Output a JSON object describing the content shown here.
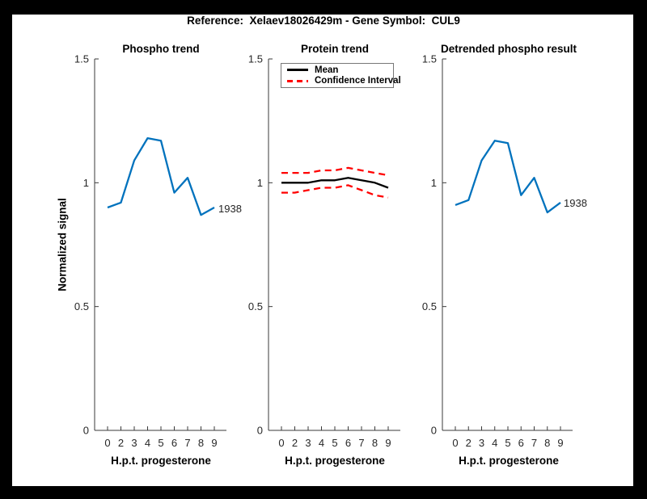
{
  "window": {
    "background": "#000000",
    "canvas_background": "#ffffff"
  },
  "figure_title": "Reference:  Xelaev18026429m - Gene Symbol:  CUL9",
  "axis_style": {
    "line_color": "#3a3a3a",
    "tick_label_color": "#262626"
  },
  "chart_data": [
    {
      "type": "line",
      "title": "Phospho trend",
      "xlabel": "H.p.t. progesterone",
      "ylabel": "Normalized signal",
      "ylim": [
        0,
        1.5
      ],
      "ytick_labels": [
        "0",
        "0.5",
        "1",
        "1.5"
      ],
      "categories": [
        "0",
        "2",
        "3",
        "4",
        "5",
        "6",
        "7",
        "8",
        "9"
      ],
      "series": [
        {
          "name": "1938",
          "color": "#0072BD",
          "dash": "solid",
          "values": [
            0.9,
            0.92,
            1.09,
            1.18,
            1.17,
            0.96,
            1.02,
            0.87,
            0.9
          ]
        }
      ],
      "end_label": "1938",
      "grid": "off",
      "legend": null
    },
    {
      "type": "line",
      "title": "Protein trend",
      "xlabel": "H.p.t. progesterone",
      "ylabel": "",
      "ylim": [
        0,
        1.5
      ],
      "ytick_labels": [
        "0",
        "0.5",
        "1",
        "1.5"
      ],
      "categories": [
        "0",
        "2",
        "3",
        "4",
        "5",
        "6",
        "7",
        "8",
        "9"
      ],
      "series": [
        {
          "name": "Mean",
          "color": "#000000",
          "dash": "solid",
          "values": [
            1.0,
            1.0,
            1.0,
            1.01,
            1.01,
            1.02,
            1.01,
            1.0,
            0.98
          ]
        },
        {
          "name": "Confidence Interval upper",
          "color": "#FF0000",
          "dash": "dashed",
          "values": [
            1.04,
            1.04,
            1.04,
            1.05,
            1.05,
            1.06,
            1.05,
            1.04,
            1.03
          ]
        },
        {
          "name": "Confidence Interval lower",
          "color": "#FF0000",
          "dash": "dashed",
          "values": [
            0.96,
            0.96,
            0.97,
            0.98,
            0.98,
            0.99,
            0.97,
            0.95,
            0.94
          ]
        }
      ],
      "end_label": "",
      "grid": "off",
      "legend": {
        "position": "top-left",
        "entries": [
          {
            "label": "Mean",
            "color": "#000000",
            "dash": "solid"
          },
          {
            "label": "Confidence Interval",
            "color": "#FF0000",
            "dash": "dashed"
          }
        ]
      }
    },
    {
      "type": "line",
      "title": "Detrended phospho result",
      "xlabel": "H.p.t. progesterone",
      "ylabel": "",
      "ylim": [
        0,
        1.5
      ],
      "ytick_labels": [
        "0",
        "0.5",
        "1",
        "1.5"
      ],
      "categories": [
        "0",
        "2",
        "3",
        "4",
        "5",
        "6",
        "7",
        "8",
        "9"
      ],
      "series": [
        {
          "name": "1938",
          "color": "#0072BD",
          "dash": "solid",
          "values": [
            0.91,
            0.93,
            1.09,
            1.17,
            1.16,
            0.95,
            1.02,
            0.88,
            0.92
          ]
        }
      ],
      "end_label": "1938",
      "grid": "off",
      "legend": null
    }
  ]
}
